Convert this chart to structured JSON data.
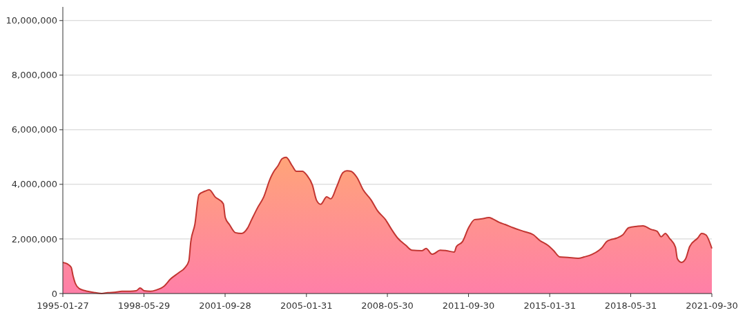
{
  "chart_data": {
    "type": "area",
    "x": [
      "1995-01-27",
      "1995-04",
      "1995-06",
      "1995-07",
      "1995-08",
      "1995-10",
      "1996-01",
      "1996-02",
      "1996-06",
      "1996-09",
      "1996-12",
      "1997-04",
      "1997-07",
      "1997-11",
      "1998-02",
      "1998-04",
      "1998-06",
      "1998-09",
      "1998-12",
      "1999-04",
      "1999-07",
      "1999-11",
      "2000-02",
      "2000-04",
      "2000-05",
      "2000-07",
      "2000-09",
      "2000-12",
      "2001-02",
      "2001-05",
      "2001-09",
      "2001-10",
      "2001-12",
      "2002-03",
      "2002-06",
      "2002-09",
      "2002-11",
      "2003-02",
      "2003-05",
      "2003-08",
      "2003-10",
      "2003-12",
      "2004-02",
      "2004-04",
      "2004-07",
      "2004-09",
      "2004-12",
      "2005-02",
      "2005-05",
      "2005-07",
      "2005-09",
      "2005-12",
      "2006-02",
      "2006-05",
      "2006-08",
      "2006-10",
      "2006-12",
      "2007-03",
      "2007-06",
      "2007-10",
      "2008-01",
      "2008-05",
      "2008-08",
      "2008-11",
      "2009-03",
      "2009-06",
      "2009-11",
      "2010-01",
      "2010-04",
      "2010-05",
      "2010-08",
      "2010-11",
      "2011-03",
      "2011-04",
      "2011-07",
      "2011-10",
      "2012-01",
      "2012-04",
      "2012-08",
      "2012-10",
      "2013-01",
      "2013-04",
      "2013-08",
      "2014-01",
      "2014-06",
      "2014-09",
      "2015-01",
      "2015-04",
      "2015-07",
      "2015-11",
      "2016-04",
      "2016-07",
      "2016-11",
      "2017-04",
      "2017-06",
      "2017-08",
      "2017-11",
      "2018-02",
      "2018-05",
      "2018-09",
      "2018-12",
      "2019-04",
      "2019-07",
      "2019-09",
      "2019-11",
      "2020-01",
      "2020-04",
      "2020-05",
      "2020-07",
      "2020-09",
      "2020-11",
      "2021-03",
      "2021-05",
      "2021-07",
      "2021-09-30"
    ],
    "series": [
      {
        "color": "#c23531",
        "values": [
          1140000,
          1090000,
          960000,
          630000,
          380000,
          180000,
          100000,
          80000,
          30000,
          0,
          30000,
          50000,
          80000,
          80000,
          100000,
          200000,
          100000,
          80000,
          130000,
          280000,
          530000,
          760000,
          940000,
          1190000,
          1900000,
          2530000,
          3620000,
          3750000,
          3800000,
          3540000,
          3290000,
          2780000,
          2530000,
          2230000,
          2200000,
          2400000,
          2710000,
          3160000,
          3540000,
          4180000,
          4480000,
          4680000,
          4940000,
          4990000,
          4680000,
          4480000,
          4480000,
          4350000,
          3970000,
          3420000,
          3270000,
          3540000,
          3470000,
          3920000,
          4430000,
          4500000,
          4480000,
          4250000,
          3800000,
          3420000,
          3040000,
          2710000,
          2350000,
          2030000,
          1770000,
          1590000,
          1570000,
          1650000,
          1440000,
          1460000,
          1590000,
          1570000,
          1520000,
          1720000,
          1900000,
          2410000,
          2710000,
          2730000,
          2780000,
          2730000,
          2610000,
          2530000,
          2410000,
          2280000,
          2150000,
          1950000,
          1770000,
          1570000,
          1340000,
          1320000,
          1290000,
          1340000,
          1440000,
          1700000,
          1900000,
          1970000,
          2030000,
          2150000,
          2410000,
          2460000,
          2480000,
          2350000,
          2280000,
          2080000,
          2200000,
          2030000,
          1700000,
          1270000,
          1140000,
          1270000,
          1720000,
          2030000,
          2200000,
          2150000,
          1650000
        ]
      }
    ],
    "xlim": [
      "1995-01-27",
      "2021-09-30"
    ],
    "xticks": [
      "1995-01-27",
      "1998-05-29",
      "2001-09-28",
      "2005-01-31",
      "2008-05-30",
      "2011-09-30",
      "2015-01-31",
      "2018-05-31",
      "2021-09-30"
    ],
    "ylim": [
      0,
      10500000
    ],
    "yticks": [
      {
        "value": 0,
        "label": "0"
      },
      {
        "value": 2000000,
        "label": "2,000,000"
      },
      {
        "value": 4000000,
        "label": "4,000,000"
      },
      {
        "value": 6000000,
        "label": "6,000,000"
      },
      {
        "value": 8000000,
        "label": "8,000,000"
      },
      {
        "value": 10000000,
        "label": "10,000,000"
      }
    ],
    "grid": "y"
  }
}
